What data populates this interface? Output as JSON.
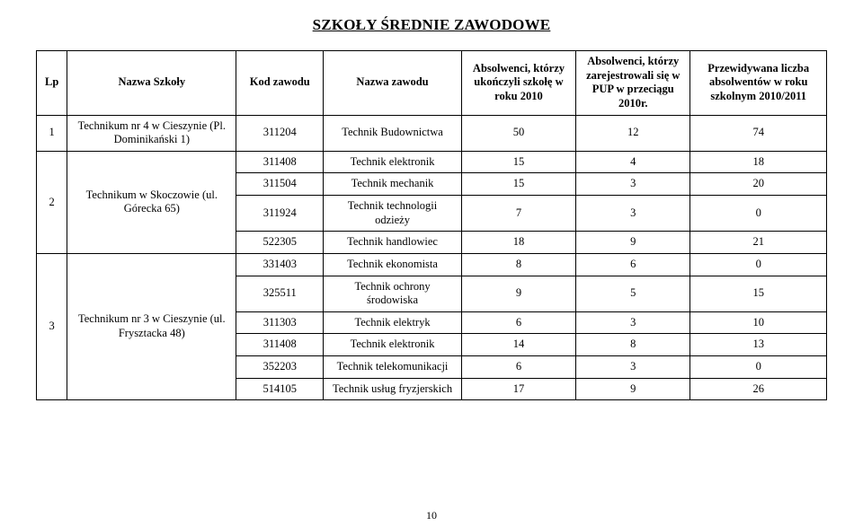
{
  "title": "SZKOŁY ŚREDNIE ZAWODOWE",
  "page_number": "10",
  "headers": {
    "lp": "Lp",
    "school": "Nazwa Szkoły",
    "code": "Kod zawodu",
    "jobname": "Nazwa zawodu",
    "colA": "Absolwenci, którzy ukończyli szkołę w roku 2010",
    "colB": "Absolwenci, którzy zarejestrowali się w PUP w przeciągu 2010r.",
    "colC": "Przewidywana liczba absolwentów w roku szkolnym 2010/2011"
  },
  "groups": [
    {
      "lp": "1",
      "school": "Technikum nr 4 w Cieszynie (Pl. Dominikański 1)",
      "rows": [
        {
          "code": "311204",
          "job": "Technik Budownictwa",
          "a": "50",
          "b": "12",
          "c": "74"
        }
      ]
    },
    {
      "lp": "2",
      "school": "Technikum w Skoczowie (ul. Górecka 65)",
      "rows": [
        {
          "code": "311408",
          "job": "Technik elektronik",
          "a": "15",
          "b": "4",
          "c": "18"
        },
        {
          "code": "311504",
          "job": "Technik mechanik",
          "a": "15",
          "b": "3",
          "c": "20"
        },
        {
          "code": "311924",
          "job": "Technik technologii odzieży",
          "a": "7",
          "b": "3",
          "c": "0"
        },
        {
          "code": "522305",
          "job": "Technik handlowiec",
          "a": "18",
          "b": "9",
          "c": "21"
        }
      ]
    },
    {
      "lp": "3",
      "school": "Technikum nr 3 w Cieszynie (ul. Frysztacka 48)",
      "rows": [
        {
          "code": "331403",
          "job": "Technik ekonomista",
          "a": "8",
          "b": "6",
          "c": "0"
        },
        {
          "code": "325511",
          "job": "Technik ochrony środowiska",
          "a": "9",
          "b": "5",
          "c": "15"
        },
        {
          "code": "311303",
          "job": "Technik elektryk",
          "a": "6",
          "b": "3",
          "c": "10"
        },
        {
          "code": "311408",
          "job": "Technik elektronik",
          "a": "14",
          "b": "8",
          "c": "13"
        },
        {
          "code": "352203",
          "job": "Technik telekomunikacji",
          "a": "6",
          "b": "3",
          "c": "0"
        },
        {
          "code": "514105",
          "job": "Technik usług fryzjerskich",
          "a": "17",
          "b": "9",
          "c": "26"
        }
      ]
    }
  ]
}
